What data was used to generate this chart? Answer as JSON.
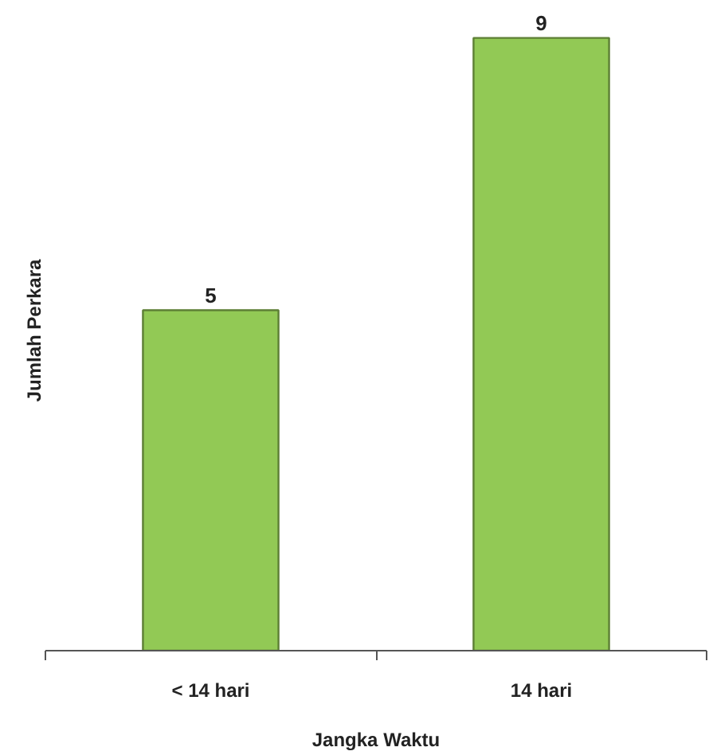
{
  "chart_data": {
    "type": "bar",
    "categories": [
      "< 14 hari",
      "14 hari"
    ],
    "values": [
      5,
      9
    ],
    "color": "#92c955",
    "xlabel": "Jangka Waktu",
    "ylabel": "Jumlah Perkara",
    "data_labels": true
  }
}
